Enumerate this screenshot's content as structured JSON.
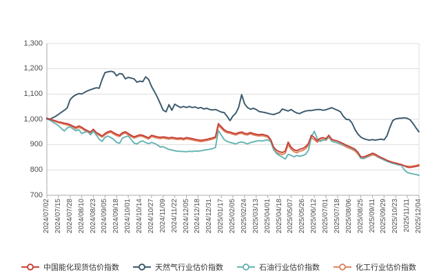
{
  "page": {
    "background": "#ffffff"
  },
  "chart_data": {
    "type": "line",
    "title": "",
    "grid": true,
    "legend_position": "bottom",
    "colors": {
      "axis_label": "#4a4a4a",
      "axis_line": "#aaaaaa",
      "gridline": "#dddddd",
      "legend_text": "#333333"
    },
    "y_axis": {
      "min": 700,
      "max": 1300,
      "step": 100,
      "tick_labels": [
        "700",
        "800",
        "900",
        "1,000",
        "1,100",
        "1,200",
        "1,300"
      ]
    },
    "x_labels": [
      "2024/07/02",
      "2024/07/15",
      "2024/07/28",
      "2024/08/10",
      "2024/08/23",
      "2024/09/05",
      "2024/09/18",
      "2024/10/01",
      "2024/10/14",
      "2024/10/27",
      "2024/11/09",
      "2024/11/22",
      "2024/12/05",
      "2024/12/18",
      "2024/12/31",
      "2025/01/17",
      "2025/02/05",
      "2025/02/24",
      "2025/03/13",
      "2025/04/01",
      "2025/04/18",
      "2025/05/07",
      "2025/05/26",
      "2025/06/12",
      "2025/07/01",
      "2025/07/18",
      "2025/08/06",
      "2025/08/25",
      "2025/09/11",
      "2025/09/29",
      "2025/10/23",
      "2025/11/11",
      "2025/12/04"
    ],
    "series": [
      {
        "name": "中国能化现货估价指数",
        "color": "#c8423a",
        "values": [
          1005,
          1001,
          997,
          994,
          990,
          988,
          985,
          983,
          979,
          973,
          968,
          974,
          969,
          961,
          955,
          950,
          961,
          948,
          942,
          934,
          944,
          951,
          954,
          947,
          941,
          937,
          947,
          951,
          944,
          937,
          931,
          935,
          939,
          937,
          932,
          927,
          937,
          934,
          931,
          929,
          931,
          929,
          927,
          929,
          927,
          925,
          927,
          924,
          928,
          926,
          924,
          921,
          919,
          917,
          919,
          921,
          924,
          927,
          931,
          983,
          971,
          959,
          952,
          950,
          946,
          943,
          948,
          950,
          945,
          943,
          948,
          944,
          941,
          939,
          941,
          938,
          935,
          920,
          890,
          878,
          872,
          869,
          874,
          910,
          890,
          880,
          876,
          882,
          885,
          892,
          905,
          937,
          928,
          916,
          925,
          928,
          924,
          937,
          921,
          917,
          914,
          909,
          904,
          898,
          893,
          888,
          882,
          870,
          852,
          851,
          856,
          861,
          866,
          862,
          855,
          849,
          844,
          838,
          834,
          830,
          827,
          824,
          821,
          816,
          811,
          810,
          812,
          814,
          817
        ]
      },
      {
        "name": "天然气行业估价指数",
        "color": "#3c5a6d",
        "values": [
          1002,
          1000,
          1006,
          1012,
          1020,
          1028,
          1036,
          1045,
          1078,
          1090,
          1097,
          1102,
          1100,
          1107,
          1113,
          1117,
          1121,
          1125,
          1123,
          1158,
          1185,
          1188,
          1190,
          1187,
          1172,
          1181,
          1179,
          1160,
          1166,
          1163,
          1160,
          1147,
          1151,
          1149,
          1168,
          1158,
          1130,
          1110,
          1088,
          1063,
          1036,
          1030,
          1058,
          1036,
          1060,
          1053,
          1047,
          1051,
          1047,
          1051,
          1047,
          1049,
          1044,
          1047,
          1041,
          1044,
          1039,
          1037,
          1039,
          1034,
          1029,
          1027,
          1012,
          995,
          1013,
          1024,
          1048,
          1098,
          1062,
          1047,
          1040,
          1044,
          1039,
          1031,
          1029,
          1027,
          1024,
          1021,
          1019,
          1023,
          1027,
          1041,
          1037,
          1033,
          1039,
          1031,
          1025,
          1023,
          1029,
          1033,
          1035,
          1035,
          1037,
          1039,
          1039,
          1036,
          1038,
          1042,
          1046,
          1041,
          1036,
          1030,
          1012,
          1000,
          999,
          985,
          960,
          942,
          930,
          924,
          920,
          918,
          920,
          918,
          920,
          922,
          919,
          935,
          968,
          995,
          1002,
          1004,
          1005,
          1006,
          1004,
          998,
          983,
          966,
          951
        ]
      },
      {
        "name": "石油行业估价指数",
        "color": "#68b5b4",
        "values": [
          1003,
          997,
          990,
          983,
          975,
          964,
          954,
          966,
          971,
          962,
          955,
          959,
          944,
          949,
          952,
          939,
          953,
          938,
          922,
          913,
          929,
          934,
          928,
          921,
          909,
          905,
          926,
          931,
          934,
          921,
          906,
          903,
          911,
          915,
          908,
          904,
          909,
          905,
          899,
          891,
          892,
          886,
          881,
          879,
          876,
          874,
          874,
          873,
          872,
          874,
          873,
          875,
          874,
          876,
          878,
          880,
          882,
          884,
          889,
          956,
          938,
          920,
          913,
          909,
          906,
          903,
          908,
          911,
          907,
          903,
          908,
          911,
          914,
          916,
          914,
          917,
          919,
          912,
          880,
          865,
          857,
          851,
          843,
          862,
          858,
          852,
          857,
          854,
          857,
          862,
          878,
          930,
          953,
          925,
          913,
          918,
          921,
          934,
          914,
          910,
          907,
          904,
          900,
          896,
          891,
          886,
          880,
          868,
          847,
          845,
          852,
          859,
          866,
          861,
          852,
          845,
          839,
          834,
          830,
          826,
          823,
          820,
          818,
          800,
          790,
          787,
          784,
          782,
          779
        ]
      },
      {
        "name": "化工行业估价指数",
        "color": "#dd8560",
        "values": [
          1004,
          999,
          995,
          991,
          987,
          984,
          981,
          978,
          974,
          969,
          963,
          969,
          964,
          956,
          950,
          945,
          956,
          943,
          937,
          930,
          939,
          946,
          949,
          942,
          936,
          932,
          942,
          946,
          939,
          932,
          926,
          930,
          934,
          932,
          927,
          922,
          932,
          929,
          926,
          924,
          926,
          924,
          922,
          924,
          922,
          920,
          922,
          919,
          923,
          921,
          919,
          916,
          914,
          912,
          914,
          916,
          919,
          922,
          926,
          975,
          965,
          953,
          947,
          945,
          941,
          938,
          943,
          945,
          940,
          938,
          943,
          939,
          936,
          934,
          936,
          933,
          930,
          915,
          882,
          870,
          864,
          861,
          866,
          900,
          882,
          872,
          868,
          874,
          877,
          884,
          897,
          927,
          920,
          910,
          918,
          921,
          917,
          930,
          914,
          910,
          907,
          902,
          897,
          891,
          886,
          881,
          875,
          863,
          846,
          845,
          850,
          855,
          860,
          857,
          850,
          845,
          840,
          835,
          831,
          828,
          825,
          823,
          821,
          817,
          815,
          814,
          816,
          818,
          821
        ]
      }
    ]
  }
}
